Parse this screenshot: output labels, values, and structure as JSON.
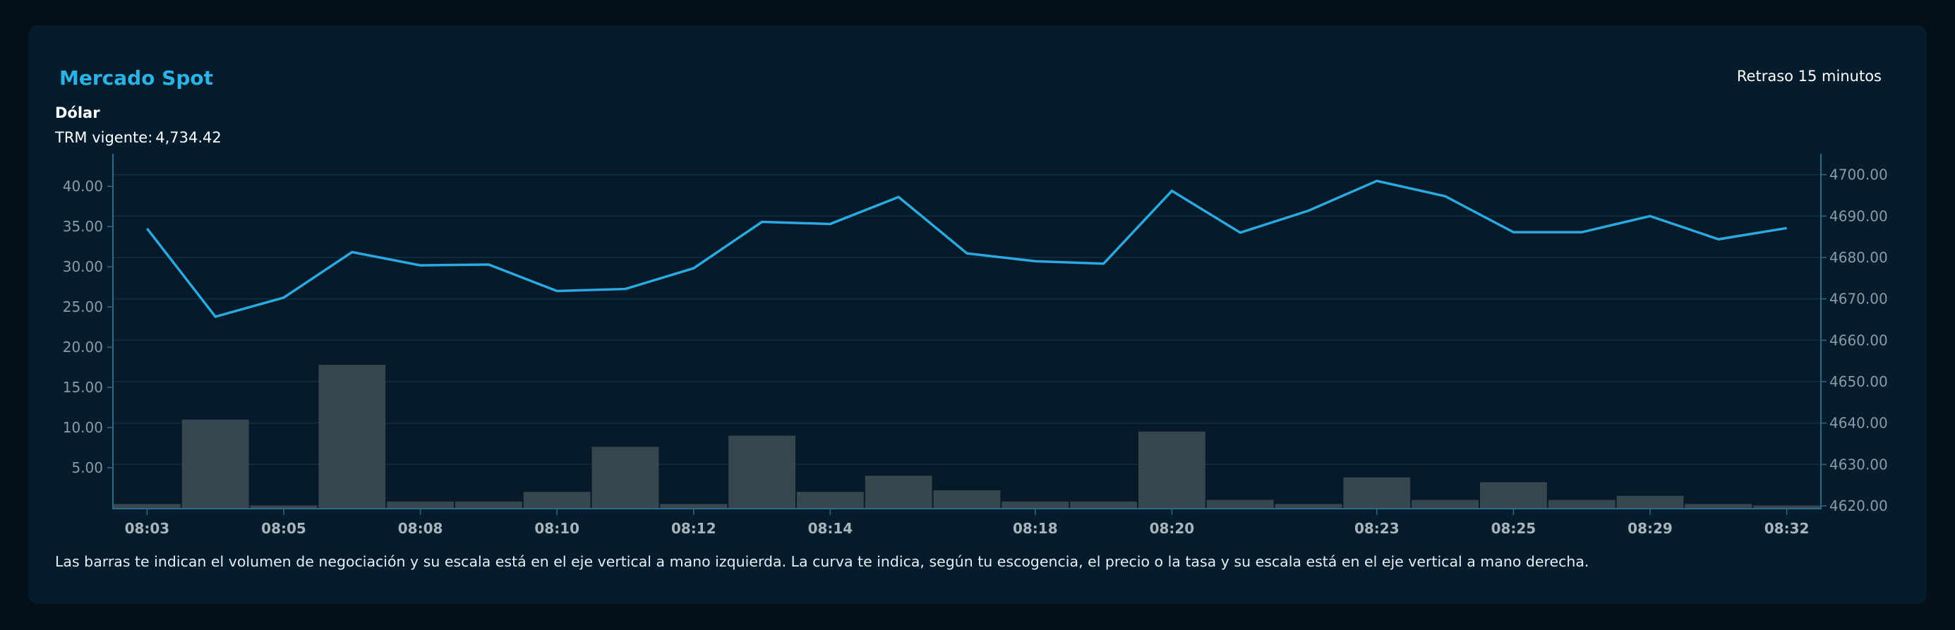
{
  "header": {
    "title": "Mercado Spot",
    "delay": "Retraso 15 minutos",
    "asset": "Dólar",
    "trm_label": "TRM vigente:",
    "trm_value": "4,734.42"
  },
  "note": "Las barras te indican el volumen de negociación y su escala está en el eje vertical a mano izquierda. La curva te indica, según tu escogencia, el precio o la tasa y su escala está en el eje vertical a mano derecha.",
  "colors": {
    "background": "#031019",
    "card": "#051c2c",
    "plot": "#061a2a",
    "line": "#29abe2",
    "bar": "#37474f",
    "axis": "#2c6a8a",
    "grid": "#0f3044",
    "tick_text": "#8c9ba6",
    "xtick_text": "#a9b4bb"
  },
  "chart_data": {
    "type": "bar+line",
    "x_ticks": [
      "08:03",
      "08:05",
      "08:08",
      "08:10",
      "08:12",
      "08:14",
      "08:18",
      "08:20",
      "08:23",
      "08:25",
      "08:29",
      "08:32"
    ],
    "x_tick_positions": [
      0,
      2,
      4,
      6,
      8,
      10,
      13,
      15,
      18,
      20,
      22,
      24
    ],
    "y_left": {
      "ticks": [
        "5.00",
        "10.00",
        "15.00",
        "20.00",
        "25.00",
        "30.00",
        "35.00",
        "40.00"
      ],
      "range": [
        0,
        43
      ]
    },
    "y_right": {
      "ticks": [
        "4620.00",
        "4630.00",
        "4640.00",
        "4650.00",
        "4660.00",
        "4670.00",
        "4680.00",
        "4690.00",
        "4700.00"
      ],
      "range": [
        4619.5,
        4703
      ]
    },
    "grid": true,
    "series": [
      {
        "kind": "bar",
        "axis": "left",
        "values": [
          0.5,
          11.0,
          0.3,
          17.8,
          0.8,
          0.8,
          2.0,
          7.6,
          0.5,
          9.0,
          2.0,
          4.0,
          2.2,
          0.8,
          0.8,
          9.5,
          1.0,
          0.5,
          3.8,
          1.0,
          3.2,
          1.0,
          1.5,
          0.5,
          0.3
        ]
      },
      {
        "kind": "line",
        "axis": "right",
        "values": [
          4687.0,
          4665.7,
          4670.3,
          4681.3,
          4678.1,
          4678.3,
          4671.9,
          4672.4,
          4677.4,
          4688.6,
          4688.1,
          4694.6,
          4681.0,
          4679.1,
          4678.5,
          4696.1,
          4686.0,
          4691.3,
          4698.5,
          4694.8,
          4686.1,
          4686.1,
          4690.0,
          4684.4,
          4687.1
        ]
      }
    ]
  }
}
